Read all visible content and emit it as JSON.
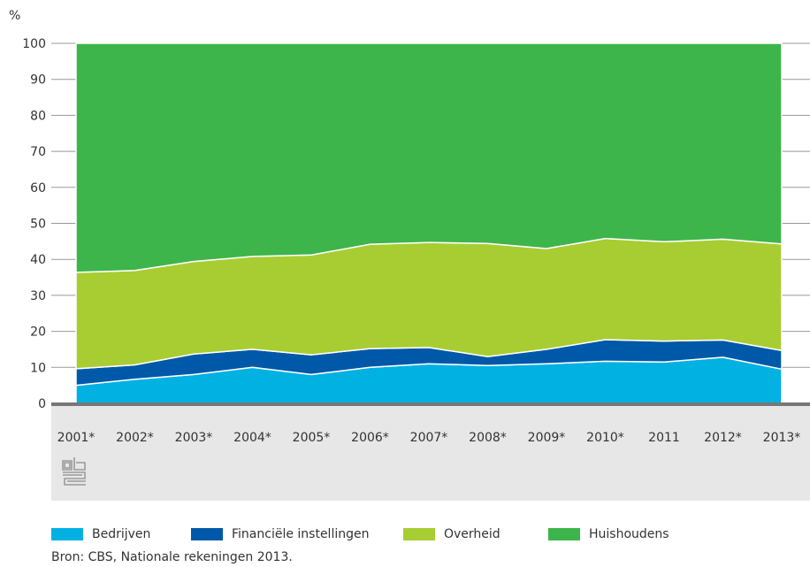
{
  "chart_data": {
    "type": "area",
    "stacked": true,
    "ylabel": "%",
    "ylim": [
      0,
      100
    ],
    "yticks": [
      0,
      10,
      20,
      30,
      40,
      50,
      60,
      70,
      80,
      90,
      100
    ],
    "grid": true,
    "legend_position": "bottom",
    "categories": [
      "2001*",
      "2002*",
      "2003*",
      "2004*",
      "2005*",
      "2006*",
      "2007*",
      "2008*",
      "2009*",
      "2010*",
      "2011",
      "2012*",
      "2013*"
    ],
    "series": [
      {
        "name": "Bedrijven",
        "color": "#00b1e2",
        "values": [
          5.0,
          6.7,
          8.0,
          10.0,
          8.0,
          10.0,
          11.0,
          10.5,
          11.0,
          11.7,
          11.5,
          12.8,
          9.5
        ]
      },
      {
        "name": "Financiële instellingen",
        "color": "#0058a8",
        "values": [
          4.6,
          4.0,
          5.7,
          5.0,
          5.5,
          5.2,
          4.5,
          2.5,
          4.0,
          6.0,
          5.8,
          4.8,
          5.2
        ]
      },
      {
        "name": "Overheid",
        "color": "#a8cd33",
        "values": [
          26.8,
          26.2,
          25.7,
          25.8,
          27.7,
          29.0,
          29.2,
          31.4,
          28.0,
          28.1,
          27.6,
          28.0,
          29.6
        ]
      },
      {
        "name": "Huishoudens",
        "color": "#3db54a",
        "values": [
          63.6,
          63.1,
          60.6,
          59.2,
          58.8,
          55.8,
          55.3,
          55.6,
          57.0,
          54.2,
          55.1,
          54.4,
          55.7
        ]
      }
    ]
  },
  "source": "Bron: CBS, Nationale rekeningen 2013.",
  "logo": {
    "icon": "cbs-logo-icon"
  }
}
